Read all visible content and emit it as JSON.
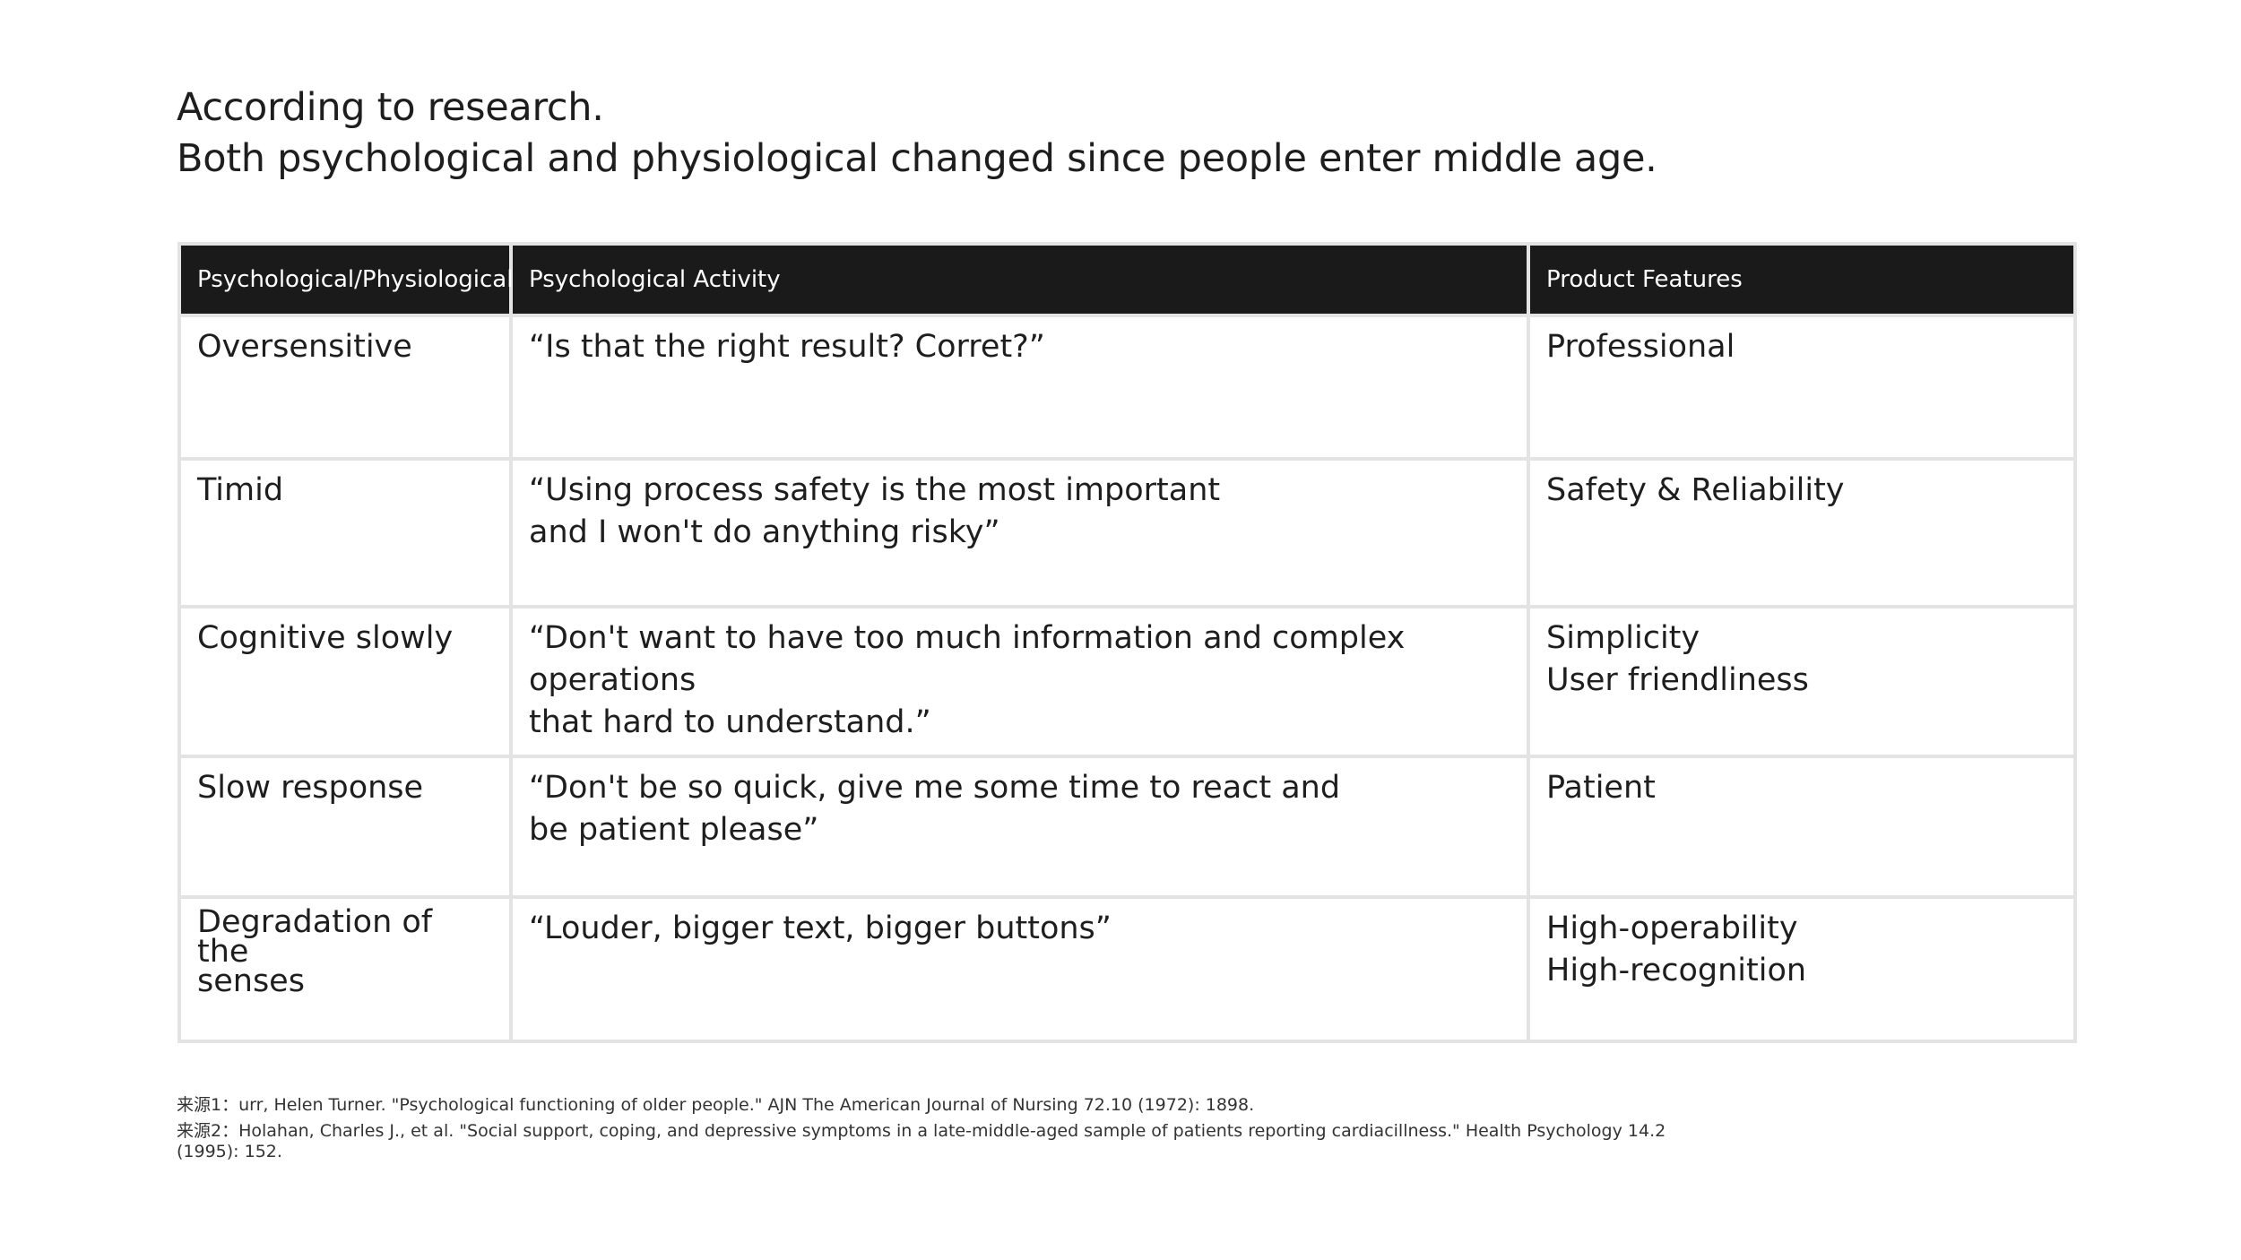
{
  "heading": {
    "line1": "According to research.",
    "line2": "Both psychological and physiological changed since people enter middle age."
  },
  "table": {
    "headers": [
      "Psychological/Physiological",
      "Psychological Activity",
      "Product Features"
    ],
    "rows": [
      {
        "trait": [
          "Oversensitive"
        ],
        "activity": [
          "“Is that the right result? Corret?”"
        ],
        "features": [
          "Professional"
        ]
      },
      {
        "trait": [
          "Timid"
        ],
        "activity": [
          "“Using process safety is the most important",
          "and I won't do anything risky”"
        ],
        "features": [
          "Safety & Reliability"
        ]
      },
      {
        "trait": [
          "Cognitive slowly"
        ],
        "activity": [
          "“Don't want to have too much information and complex operations",
          "that hard to understand.”"
        ],
        "features": [
          "Simplicity",
          "User friendliness"
        ]
      },
      {
        "trait": [
          "Slow response"
        ],
        "activity": [
          "“Don't be so quick, give me some time to react and",
          "be patient please”"
        ],
        "features": [
          "Patient"
        ]
      },
      {
        "trait": [
          "Degradation of the",
          "senses"
        ],
        "activity": [
          "“Louder, bigger text, bigger buttons”"
        ],
        "features": [
          "High-operability",
          "High-recognition"
        ]
      }
    ]
  },
  "references": [
    "来源1：urr, Helen Turner. \"Psychological functioning of older people.\" AJN The American Journal of Nursing 72.10 (1972): 1898.",
    "来源2：Holahan, Charles J., et al. \"Social support, coping, and depressive symptoms in a late-middle-aged sample of patients reporting cardiacillness.\" Health Psychology 14.2",
    "(1995): 152."
  ],
  "colors": {
    "header_bg": "#1a1a1a",
    "header_text": "#ffffff",
    "grid_line": "#e3e3e3",
    "body_text": "#1e1e1e"
  }
}
